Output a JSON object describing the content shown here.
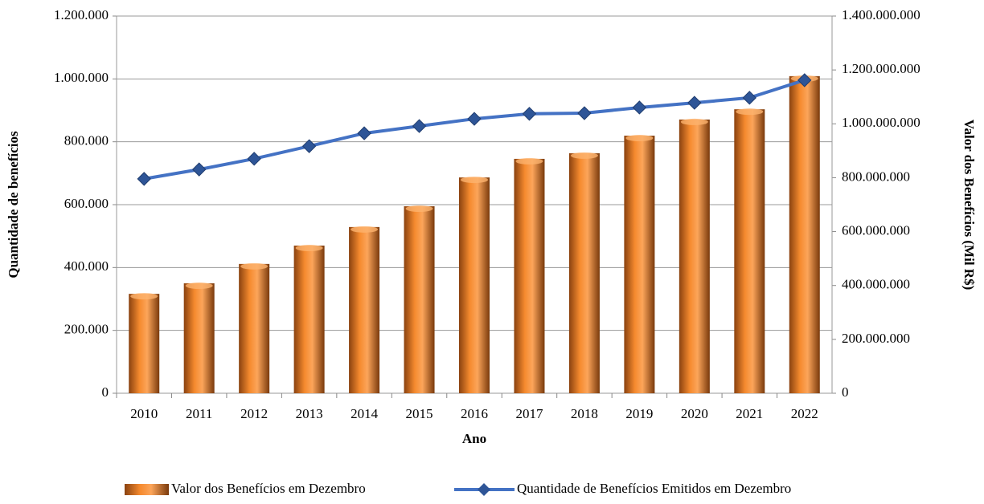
{
  "chart_data": {
    "type": "bar",
    "x_label": "Ano",
    "y_label": "Quantidade de benefícios",
    "y2_label": "Valor dos Benefícios (Mil R$)",
    "categories": [
      "2010",
      "2011",
      "2012",
      "2013",
      "2014",
      "2015",
      "2016",
      "2017",
      "2018",
      "2019",
      "2020",
      "2021",
      "2022"
    ],
    "series": [
      {
        "name": "Valor dos Benefícios em Dezembro",
        "type": "bar",
        "axis": "y2",
        "color": "#f58a2e",
        "values": [
          369000000,
          408000000,
          480000000,
          548000000,
          617000000,
          694000000,
          801000000,
          870000000,
          891000000,
          956000000,
          1016000000,
          1054000000,
          1177000000
        ]
      },
      {
        "name": "Quantidade de Benefícios Emitidos em Dezembro",
        "type": "line",
        "axis": "y",
        "color": "#4472c4",
        "values": [
          682000,
          712000,
          746000,
          786000,
          827000,
          850000,
          873000,
          889000,
          891000,
          909000,
          924000,
          940000,
          996000
        ]
      }
    ],
    "ylim": [
      0,
      1200000
    ],
    "yticks": [
      0,
      {
        "value": 200000,
        "label": "200.000"
      },
      {
        "value": 400000,
        "label": "400.000"
      },
      {
        "value": 600000,
        "label": "600.000"
      },
      {
        "value": 800000,
        "label": "800.000"
      },
      {
        "value": 1000000,
        "label": "1.000.000"
      },
      {
        "value": 1200000,
        "label": "1.200.000"
      }
    ],
    "y2lim": [
      0,
      1400000000
    ],
    "y2ticks": [
      0,
      {
        "value": 200000000,
        "label": "200.000.000"
      },
      {
        "value": 400000000,
        "label": "400.000.000"
      },
      {
        "value": 600000000,
        "label": "600.000.000"
      },
      {
        "value": 800000000,
        "label": "800.000.000"
      },
      {
        "value": 1000000000,
        "label": "1.000.000.000"
      },
      {
        "value": 1200000000,
        "label": "1.200.000.000"
      },
      {
        "value": 1400000000,
        "label": "1.400.000.000"
      }
    ],
    "grid": true,
    "legend": "bottom"
  }
}
